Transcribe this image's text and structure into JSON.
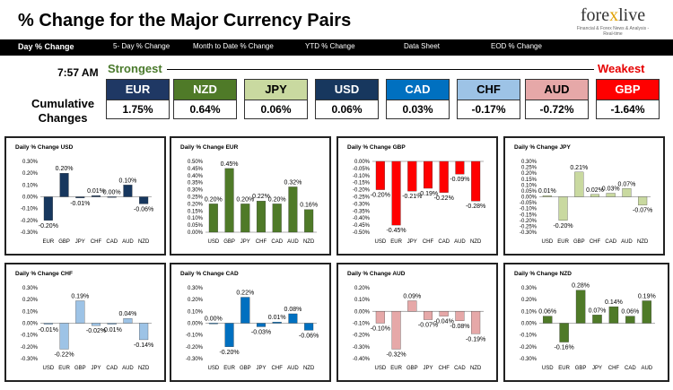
{
  "header": {
    "title": "% Change for the Major Currency Pairs",
    "logo_a": "fore",
    "logo_x": "x",
    "logo_b": "live",
    "logo_tagline": "Financial & Forex News & Analysis - Real-time"
  },
  "tabs": [
    "Day % Change",
    "5- Day % Change",
    "Month to Date % Change",
    "YTD % Change",
    "Data Sheet",
    "EOD % Change"
  ],
  "summary": {
    "time": "7:57 AM",
    "strongest": "Strongest",
    "weakest": "Weakest",
    "cumulative_1": "Cumulative",
    "cumulative_2": "Changes",
    "currencies": [
      {
        "code": "EUR",
        "value": "1.75%",
        "color": "#1f3864"
      },
      {
        "code": "NZD",
        "value": "0.64%",
        "color": "#4f7a28"
      },
      {
        "code": "JPY",
        "value": "0.06%",
        "color": "#c9d9a0"
      },
      {
        "code": "USD",
        "value": "0.06%",
        "color": "#17375e"
      },
      {
        "code": "CAD",
        "value": "0.03%",
        "color": "#0070c0"
      },
      {
        "code": "CHF",
        "value": "-0.17%",
        "color": "#9dc3e6"
      },
      {
        "code": "AUD",
        "value": "-0.72%",
        "color": "#e6a8a8"
      },
      {
        "code": "GBP",
        "value": "-1.64%",
        "color": "#ff0000"
      }
    ]
  },
  "chart_data": [
    {
      "type": "bar",
      "title": "Daily % Change USD",
      "categories": [
        "EUR",
        "GBP",
        "JPY",
        "CHF",
        "CAD",
        "AUD",
        "NZD"
      ],
      "values": [
        -0.2,
        0.2,
        -0.01,
        0.01,
        0.0,
        0.1,
        -0.06
      ],
      "labels": [
        "-0.20%",
        "0.20%",
        "-0.01%",
        "0.01%",
        "0.00%",
        "0.10%",
        "-0.06%"
      ],
      "ylim": [
        -0.3,
        0.3
      ],
      "ticks": [
        "0.30%",
        "0.20%",
        "0.10%",
        "0.00%",
        "-0.10%",
        "-0.20%",
        "-0.30%"
      ],
      "color": "#17375e"
    },
    {
      "type": "bar",
      "title": "Daily % Change EUR",
      "categories": [
        "USD",
        "GBP",
        "JPY",
        "CHF",
        "CAD",
        "AUD",
        "NZD"
      ],
      "values": [
        0.2,
        0.45,
        0.2,
        0.22,
        0.2,
        0.32,
        0.16
      ],
      "labels": [
        "0.20%",
        "0.45%",
        "0.20%",
        "0.22%",
        "0.20%",
        "0.32%",
        "0.16%"
      ],
      "ylim": [
        0,
        0.5
      ],
      "ticks": [
        "0.50%",
        "0.45%",
        "0.40%",
        "0.35%",
        "0.30%",
        "0.25%",
        "0.20%",
        "0.15%",
        "0.10%",
        "0.05%",
        "0.00%"
      ],
      "color": "#4f7a28"
    },
    {
      "type": "bar",
      "title": "Daily % Change GBP",
      "categories": [
        "USD",
        "EUR",
        "JPY",
        "CHF",
        "CAD",
        "AUD",
        "NZD"
      ],
      "values": [
        -0.2,
        -0.45,
        -0.21,
        -0.19,
        -0.22,
        -0.09,
        -0.28
      ],
      "labels": [
        "-0.20%",
        "-0.45%",
        "-0.21%",
        "-0.19%",
        "-0.22%",
        "-0.09%",
        "-0.28%"
      ],
      "ylim": [
        -0.5,
        0
      ],
      "ticks": [
        "0.00%",
        "-0.05%",
        "-0.10%",
        "-0.15%",
        "-0.20%",
        "-0.25%",
        "-0.30%",
        "-0.35%",
        "-0.40%",
        "-0.45%",
        "-0.50%"
      ],
      "color": "#ff0000"
    },
    {
      "type": "bar",
      "title": "Daily % Change JPY",
      "categories": [
        "USD",
        "EUR",
        "GBP",
        "CHF",
        "CAD",
        "AUD",
        "NZD"
      ],
      "values": [
        0.01,
        -0.2,
        0.21,
        0.02,
        0.03,
        0.07,
        -0.07
      ],
      "labels": [
        "0.01%",
        "-0.20%",
        "0.21%",
        "0.02%",
        "0.03%",
        "0.07%",
        "-0.07%"
      ],
      "ylim": [
        -0.3,
        0.3
      ],
      "ticks": [
        "0.30%",
        "0.25%",
        "0.20%",
        "0.15%",
        "0.10%",
        "0.05%",
        "0.00%",
        "-0.05%",
        "-0.10%",
        "-0.15%",
        "-0.20%",
        "-0.25%",
        "-0.30%"
      ],
      "color": "#c9d9a0"
    },
    {
      "type": "bar",
      "title": "Daily % Change CHF",
      "categories": [
        "USD",
        "EUR",
        "GBP",
        "JPY",
        "CAD",
        "AUD",
        "NZD"
      ],
      "values": [
        -0.01,
        -0.22,
        0.19,
        -0.02,
        -0.01,
        0.04,
        -0.14
      ],
      "labels": [
        "-0.01%",
        "-0.22%",
        "0.19%",
        "-0.02%",
        "-0.01%",
        "0.04%",
        "-0.14%"
      ],
      "ylim": [
        -0.3,
        0.3
      ],
      "ticks": [
        "0.30%",
        "0.20%",
        "0.10%",
        "0.00%",
        "-0.10%",
        "-0.20%",
        "-0.30%"
      ],
      "color": "#9dc3e6"
    },
    {
      "type": "bar",
      "title": "Daily % Change CAD",
      "categories": [
        "USD",
        "EUR",
        "GBP",
        "JPY",
        "CHF",
        "AUD",
        "NZD"
      ],
      "values": [
        0.0,
        -0.2,
        0.22,
        -0.03,
        0.01,
        0.08,
        -0.06
      ],
      "labels": [
        "0.00%",
        "-0.20%",
        "0.22%",
        "-0.03%",
        "0.01%",
        "0.08%",
        "-0.06%"
      ],
      "ylim": [
        -0.3,
        0.3
      ],
      "ticks": [
        "0.30%",
        "0.20%",
        "0.10%",
        "0.00%",
        "-0.10%",
        "-0.20%",
        "-0.30%"
      ],
      "color": "#0070c0"
    },
    {
      "type": "bar",
      "title": "Daily % Change AUD",
      "categories": [
        "USD",
        "EUR",
        "GBP",
        "JPY",
        "CHF",
        "CAD",
        "NZD"
      ],
      "values": [
        -0.1,
        -0.32,
        0.09,
        -0.07,
        -0.04,
        -0.08,
        -0.19
      ],
      "labels": [
        "-0.10%",
        "-0.32%",
        "0.09%",
        "-0.07%",
        "-0.04%",
        "-0.08%",
        "-0.19%"
      ],
      "ylim": [
        -0.4,
        0.2
      ],
      "ticks": [
        "0.20%",
        "0.10%",
        "0.00%",
        "-0.10%",
        "-0.20%",
        "-0.30%",
        "-0.40%"
      ],
      "color": "#e6a8a8"
    },
    {
      "type": "bar",
      "title": "Daily % Change NZD",
      "categories": [
        "USD",
        "EUR",
        "GBP",
        "JPY",
        "CHF",
        "CAD",
        "AUD"
      ],
      "values": [
        0.06,
        -0.16,
        0.28,
        0.07,
        0.14,
        0.06,
        0.19
      ],
      "labels": [
        "0.06%",
        "-0.16%",
        "0.28%",
        "0.07%",
        "0.14%",
        "0.06%",
        "0.19%"
      ],
      "ylim": [
        -0.3,
        0.3
      ],
      "ticks": [
        "0.30%",
        "0.20%",
        "0.10%",
        "0.00%",
        "-0.10%",
        "-0.20%",
        "-0.30%"
      ],
      "color": "#4f7a28"
    }
  ]
}
